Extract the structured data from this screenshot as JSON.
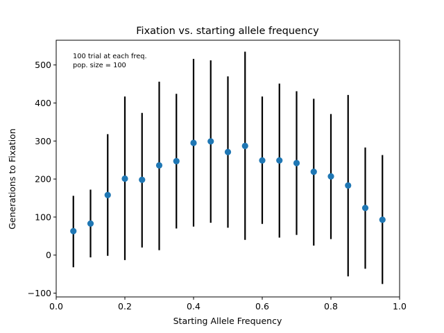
{
  "chart_data": {
    "type": "scatter",
    "title": "Fixation vs. starting allele frequency",
    "xlabel": "Starting Allele Frequency",
    "ylabel": "Generations to Fixation",
    "xlim": [
      0.0,
      1.0
    ],
    "ylim": [
      -110,
      565
    ],
    "xticks": [
      0.0,
      0.2,
      0.4,
      0.6,
      0.8,
      1.0
    ],
    "xtick_labels": [
      "0.0",
      "0.2",
      "0.4",
      "0.6",
      "0.8",
      "1.0"
    ],
    "yticks": [
      -100,
      0,
      100,
      200,
      300,
      400,
      500
    ],
    "ytick_labels": [
      "−100",
      "0",
      "100",
      "200",
      "300",
      "400",
      "500"
    ],
    "grid": false,
    "annotations": [
      "100 trial at each freq.",
      "pop. size = 100"
    ],
    "marker_color": "#1f77b4",
    "errorbar_color": "#000000",
    "x": [
      0.05,
      0.1,
      0.15,
      0.2,
      0.25,
      0.3,
      0.35,
      0.4,
      0.45,
      0.5,
      0.55,
      0.6,
      0.65,
      0.7,
      0.75,
      0.8,
      0.85,
      0.9,
      0.95
    ],
    "y": [
      63,
      83,
      158,
      201,
      198,
      236,
      247,
      295,
      299,
      271,
      287,
      249,
      249,
      242,
      219,
      207,
      183,
      124,
      93
    ],
    "y_lower": [
      -32,
      -6,
      -2,
      -13,
      20,
      13,
      70,
      75,
      85,
      72,
      40,
      82,
      46,
      53,
      25,
      42,
      -56,
      -36,
      -76
    ],
    "y_upper": [
      156,
      172,
      318,
      417,
      374,
      456,
      424,
      516,
      512,
      470,
      535,
      417,
      451,
      431,
      411,
      371,
      421,
      283,
      263
    ]
  }
}
